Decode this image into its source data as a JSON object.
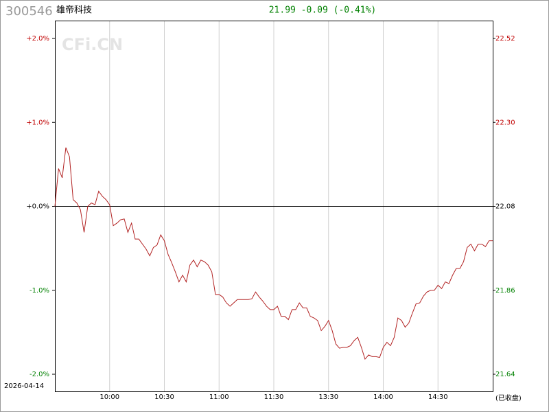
{
  "chart_data": {
    "type": "line",
    "code": "300546",
    "name": "雄帝科技",
    "quote": "21.99 -0.09 (-0.41%)",
    "watermark": "CFi.CN",
    "date": "2026-04-14",
    "status": "(已收盘)",
    "xlim": [
      0,
      240
    ],
    "xticks": [
      {
        "value": 30,
        "label": "10:00"
      },
      {
        "value": 60,
        "label": "10:30"
      },
      {
        "value": 90,
        "label": "11:00"
      },
      {
        "value": 120,
        "label": "11:30"
      },
      {
        "value": 150,
        "label": "13:30"
      },
      {
        "value": 180,
        "label": "14:00"
      },
      {
        "value": 210,
        "label": "14:30"
      }
    ],
    "ylim": [
      -2,
      2
    ],
    "yticks": [
      {
        "value": 2,
        "label": "+2.0%"
      },
      {
        "value": 1,
        "label": "+1.0%"
      },
      {
        "value": 0,
        "label": "+0.0%"
      },
      {
        "value": -1,
        "label": "-1.0%"
      },
      {
        "value": -2,
        "label": "-2.0%"
      }
    ],
    "y2lim": [
      21.64,
      22.52
    ],
    "y2ticks": [
      22.52,
      {
        "value": 22.3,
        "label": "22.30"
      },
      22.08,
      21.86,
      21.64
    ],
    "up_color": "#c00000",
    "down_color": "#008000",
    "flat_color": "#000000",
    "x": [
      0,
      2,
      4,
      6,
      8,
      10,
      12,
      14,
      16,
      18,
      20,
      22,
      24,
      26,
      28,
      30,
      32,
      34,
      36,
      38,
      40,
      42,
      44,
      46,
      48,
      50,
      52,
      54,
      56,
      58,
      60,
      62,
      64,
      66,
      68,
      70,
      72,
      74,
      76,
      78,
      80,
      82,
      84,
      86,
      88,
      90,
      92,
      94,
      96,
      98,
      100,
      102,
      104,
      106,
      108,
      110,
      112,
      114,
      116,
      118,
      120,
      122,
      124,
      126,
      128,
      130,
      132,
      134,
      136,
      138,
      140,
      142,
      144,
      146,
      148,
      150,
      152,
      154,
      156,
      158,
      160,
      162,
      164,
      166,
      168,
      170,
      172,
      174,
      176,
      178,
      180,
      182,
      184,
      186,
      188,
      190,
      192,
      194,
      196,
      198,
      200,
      202,
      204,
      206,
      208,
      210,
      212,
      214,
      216,
      218,
      220,
      222,
      224,
      226,
      228,
      230,
      232,
      234,
      236,
      238,
      240
    ],
    "series": [
      {
        "color": "#b22222",
        "values": [
          0.0,
          0.45,
          0.34,
          0.7,
          0.59,
          0.08,
          0.04,
          -0.04,
          -0.31,
          0.0,
          0.04,
          0.02,
          0.18,
          0.12,
          0.08,
          0.02,
          -0.23,
          -0.2,
          -0.16,
          -0.15,
          -0.31,
          -0.2,
          -0.39,
          -0.39,
          -0.45,
          -0.51,
          -0.59,
          -0.49,
          -0.46,
          -0.34,
          -0.41,
          -0.57,
          -0.67,
          -0.78,
          -0.9,
          -0.82,
          -0.9,
          -0.7,
          -0.64,
          -0.72,
          -0.64,
          -0.66,
          -0.7,
          -0.78,
          -1.05,
          -1.05,
          -1.08,
          -1.15,
          -1.19,
          -1.15,
          -1.11,
          -1.11,
          -1.11,
          -1.11,
          -1.1,
          -1.02,
          -1.08,
          -1.13,
          -1.19,
          -1.23,
          -1.23,
          -1.19,
          -1.31,
          -1.31,
          -1.35,
          -1.23,
          -1.23,
          -1.15,
          -1.21,
          -1.21,
          -1.31,
          -1.33,
          -1.36,
          -1.48,
          -1.43,
          -1.36,
          -1.48,
          -1.64,
          -1.69,
          -1.68,
          -1.68,
          -1.66,
          -1.6,
          -1.56,
          -1.68,
          -1.82,
          -1.77,
          -1.79,
          -1.79,
          -1.8,
          -1.68,
          -1.62,
          -1.66,
          -1.56,
          -1.33,
          -1.36,
          -1.44,
          -1.39,
          -1.27,
          -1.16,
          -1.15,
          -1.07,
          -1.02,
          -1.0,
          -1.0,
          -0.94,
          -0.98,
          -0.9,
          -0.92,
          -0.82,
          -0.74,
          -0.74,
          -0.66,
          -0.49,
          -0.45,
          -0.53,
          -0.45,
          -0.45,
          -0.48,
          -0.41,
          -0.41
        ]
      }
    ]
  }
}
